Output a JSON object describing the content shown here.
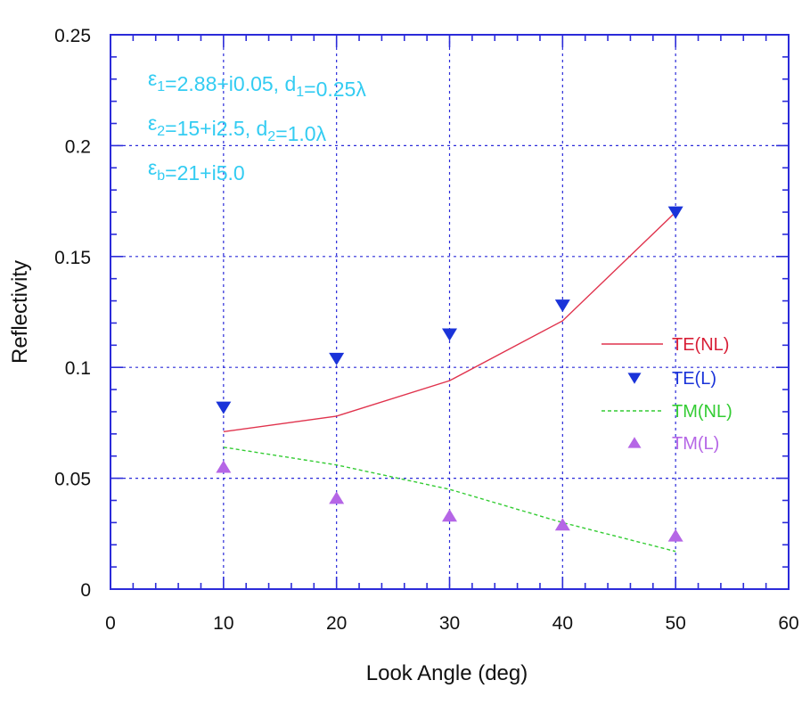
{
  "chart_data": {
    "type": "line",
    "title": "",
    "xlabel": "Look Angle (deg)",
    "ylabel": "Reflectivity",
    "xlim": [
      0,
      60
    ],
    "ylim": [
      0,
      0.25
    ],
    "xticks": [
      0,
      10,
      20,
      30,
      40,
      50,
      60
    ],
    "yticks": [
      0,
      0.05,
      0.1,
      0.15,
      0.2,
      0.25
    ],
    "xtick_labels": [
      "0",
      "10",
      "20",
      "30",
      "40",
      "50",
      "60"
    ],
    "ytick_labels": [
      "0",
      "0.05",
      "0.1",
      "0.15",
      "0.2",
      "0.25"
    ],
    "grid": true,
    "legend_position": "right",
    "series": [
      {
        "name": "TE(NL)",
        "style": "line-solid",
        "color": "#e0334d",
        "label_color": "#d81e36",
        "x": [
          10,
          20,
          30,
          40,
          50
        ],
        "y": [
          0.071,
          0.078,
          0.094,
          0.121,
          0.17
        ]
      },
      {
        "name": "TE(L)",
        "style": "marker-triangle-down",
        "color": "#1a33d9",
        "label_color": "#1a33d9",
        "x": [
          10,
          20,
          30,
          40,
          50
        ],
        "y": [
          0.082,
          0.104,
          0.115,
          0.128,
          0.17
        ]
      },
      {
        "name": "TM(NL)",
        "style": "line-dashed",
        "color": "#33cc33",
        "label_color": "#33cc33",
        "x": [
          10,
          20,
          30,
          40,
          50
        ],
        "y": [
          0.064,
          0.056,
          0.045,
          0.03,
          0.017
        ]
      },
      {
        "name": "TM(L)",
        "style": "marker-triangle-up",
        "color": "#b566e6",
        "label_color": "#b566e6",
        "x": [
          10,
          20,
          30,
          40,
          50
        ],
        "y": [
          0.055,
          0.041,
          0.033,
          0.029,
          0.024
        ]
      }
    ],
    "annotations": [
      {
        "symbol": "ε",
        "sub": "1",
        "text1": "=2.88+i0.05, d",
        "sub2": "1",
        "text2": "=0.25λ"
      },
      {
        "symbol": "ε",
        "sub": "2",
        "text1": "=15+i2.5, d",
        "sub2": "2",
        "text2": "=1.0λ"
      },
      {
        "symbol": "ε",
        "sub": "b",
        "text1": "=21+i5.0",
        "sub2": "",
        "text2": ""
      }
    ],
    "annotation_color": "#33ccf2",
    "axis_color": "#2b2bd9",
    "grid_color": "#2b2bd9"
  }
}
